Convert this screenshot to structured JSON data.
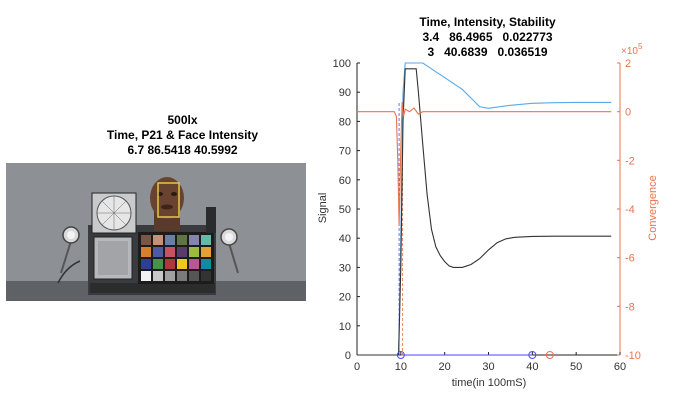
{
  "left_panel": {
    "title_lines": [
      "500lx",
      "Time, P21 & Face Intensity",
      "6.7 86.5418 40.5992"
    ]
  },
  "chart_data": {
    "type": "line",
    "title_lines": [
      "Time, Intensity, Stability",
      "3.4   86.4965   0.022773",
      "3   40.6839   0.036519"
    ],
    "xlabel": "time(in 100mS)",
    "ylabel_left": "Signal",
    "ylabel_right": "Convergence",
    "right_exponent": "×10",
    "right_exponent_power": "5",
    "xlim": [
      0,
      60
    ],
    "ylim_left": [
      0,
      100
    ],
    "ylim_right": [
      -10,
      2
    ],
    "x_ticks": [
      "0",
      "10",
      "20",
      "30",
      "40",
      "50",
      "60"
    ],
    "y_left_ticks": [
      "0",
      "10",
      "20",
      "30",
      "40",
      "50",
      "60",
      "70",
      "80",
      "90",
      "100"
    ],
    "y_right_ticks": [
      "2",
      "0",
      "-2",
      "-4",
      "-6",
      "-8",
      "-10"
    ],
    "colors": {
      "blue": "#5aa9e6",
      "black": "#333333",
      "orange": "#e8744f",
      "marker_blue": "#4a4aff"
    },
    "series": [
      {
        "color": "blue",
        "axis": "left",
        "x": [
          0,
          9,
          9.5,
          10,
          10.5,
          11,
          13,
          15,
          16,
          17,
          18,
          20,
          22,
          24,
          26,
          28,
          30,
          35,
          40,
          45,
          50,
          55,
          58
        ],
        "y": [
          0,
          0,
          0,
          40,
          90,
          100,
          100,
          100,
          99,
          98,
          97,
          95,
          93,
          91,
          88,
          85,
          84.5,
          85.5,
          86.2,
          86.4,
          86.5,
          86.5,
          86.5
        ]
      },
      {
        "color": "black",
        "axis": "left",
        "x": [
          0,
          9,
          9.5,
          10,
          10.5,
          11,
          12.5,
          13.5,
          14,
          15,
          16,
          17,
          18,
          19,
          20,
          21,
          22,
          24,
          26,
          28,
          30,
          32,
          34,
          36,
          40,
          45,
          50,
          55,
          58
        ],
        "y": [
          0,
          0,
          0,
          30,
          80,
          98,
          98,
          98,
          90,
          72,
          55,
          43,
          37,
          34,
          32,
          30.5,
          30,
          30,
          31,
          33,
          36,
          38.5,
          39.8,
          40.3,
          40.6,
          40.7,
          40.7,
          40.7,
          40.7
        ]
      },
      {
        "color": "orange",
        "axis": "right",
        "x": [
          0,
          8.5,
          9,
          9.3,
          9.6,
          10,
          10.3,
          10.6,
          11,
          12,
          13,
          14,
          15,
          20,
          30,
          40,
          50,
          58
        ],
        "y": [
          0,
          0,
          -0.2,
          -2,
          -4.7,
          -1.5,
          0.4,
          -0.2,
          0.1,
          0,
          0.15,
          -0.1,
          0,
          0,
          0,
          0,
          0,
          0
        ]
      }
    ],
    "markers": [
      {
        "x": 10,
        "y": 0,
        "axis": "left",
        "color": "marker_blue"
      },
      {
        "x": 40,
        "y": 0,
        "axis": "left",
        "color": "marker_blue"
      },
      {
        "x": 44,
        "y": 0,
        "axis": "left",
        "color": "orange"
      }
    ],
    "vertical_lines": [
      {
        "x": 9.6,
        "color": "marker_blue"
      },
      {
        "x": 10.4,
        "color": "orange"
      }
    ],
    "baseline_segment": {
      "x1": 10,
      "x2": 40,
      "y": 0,
      "color": "marker_blue"
    }
  }
}
